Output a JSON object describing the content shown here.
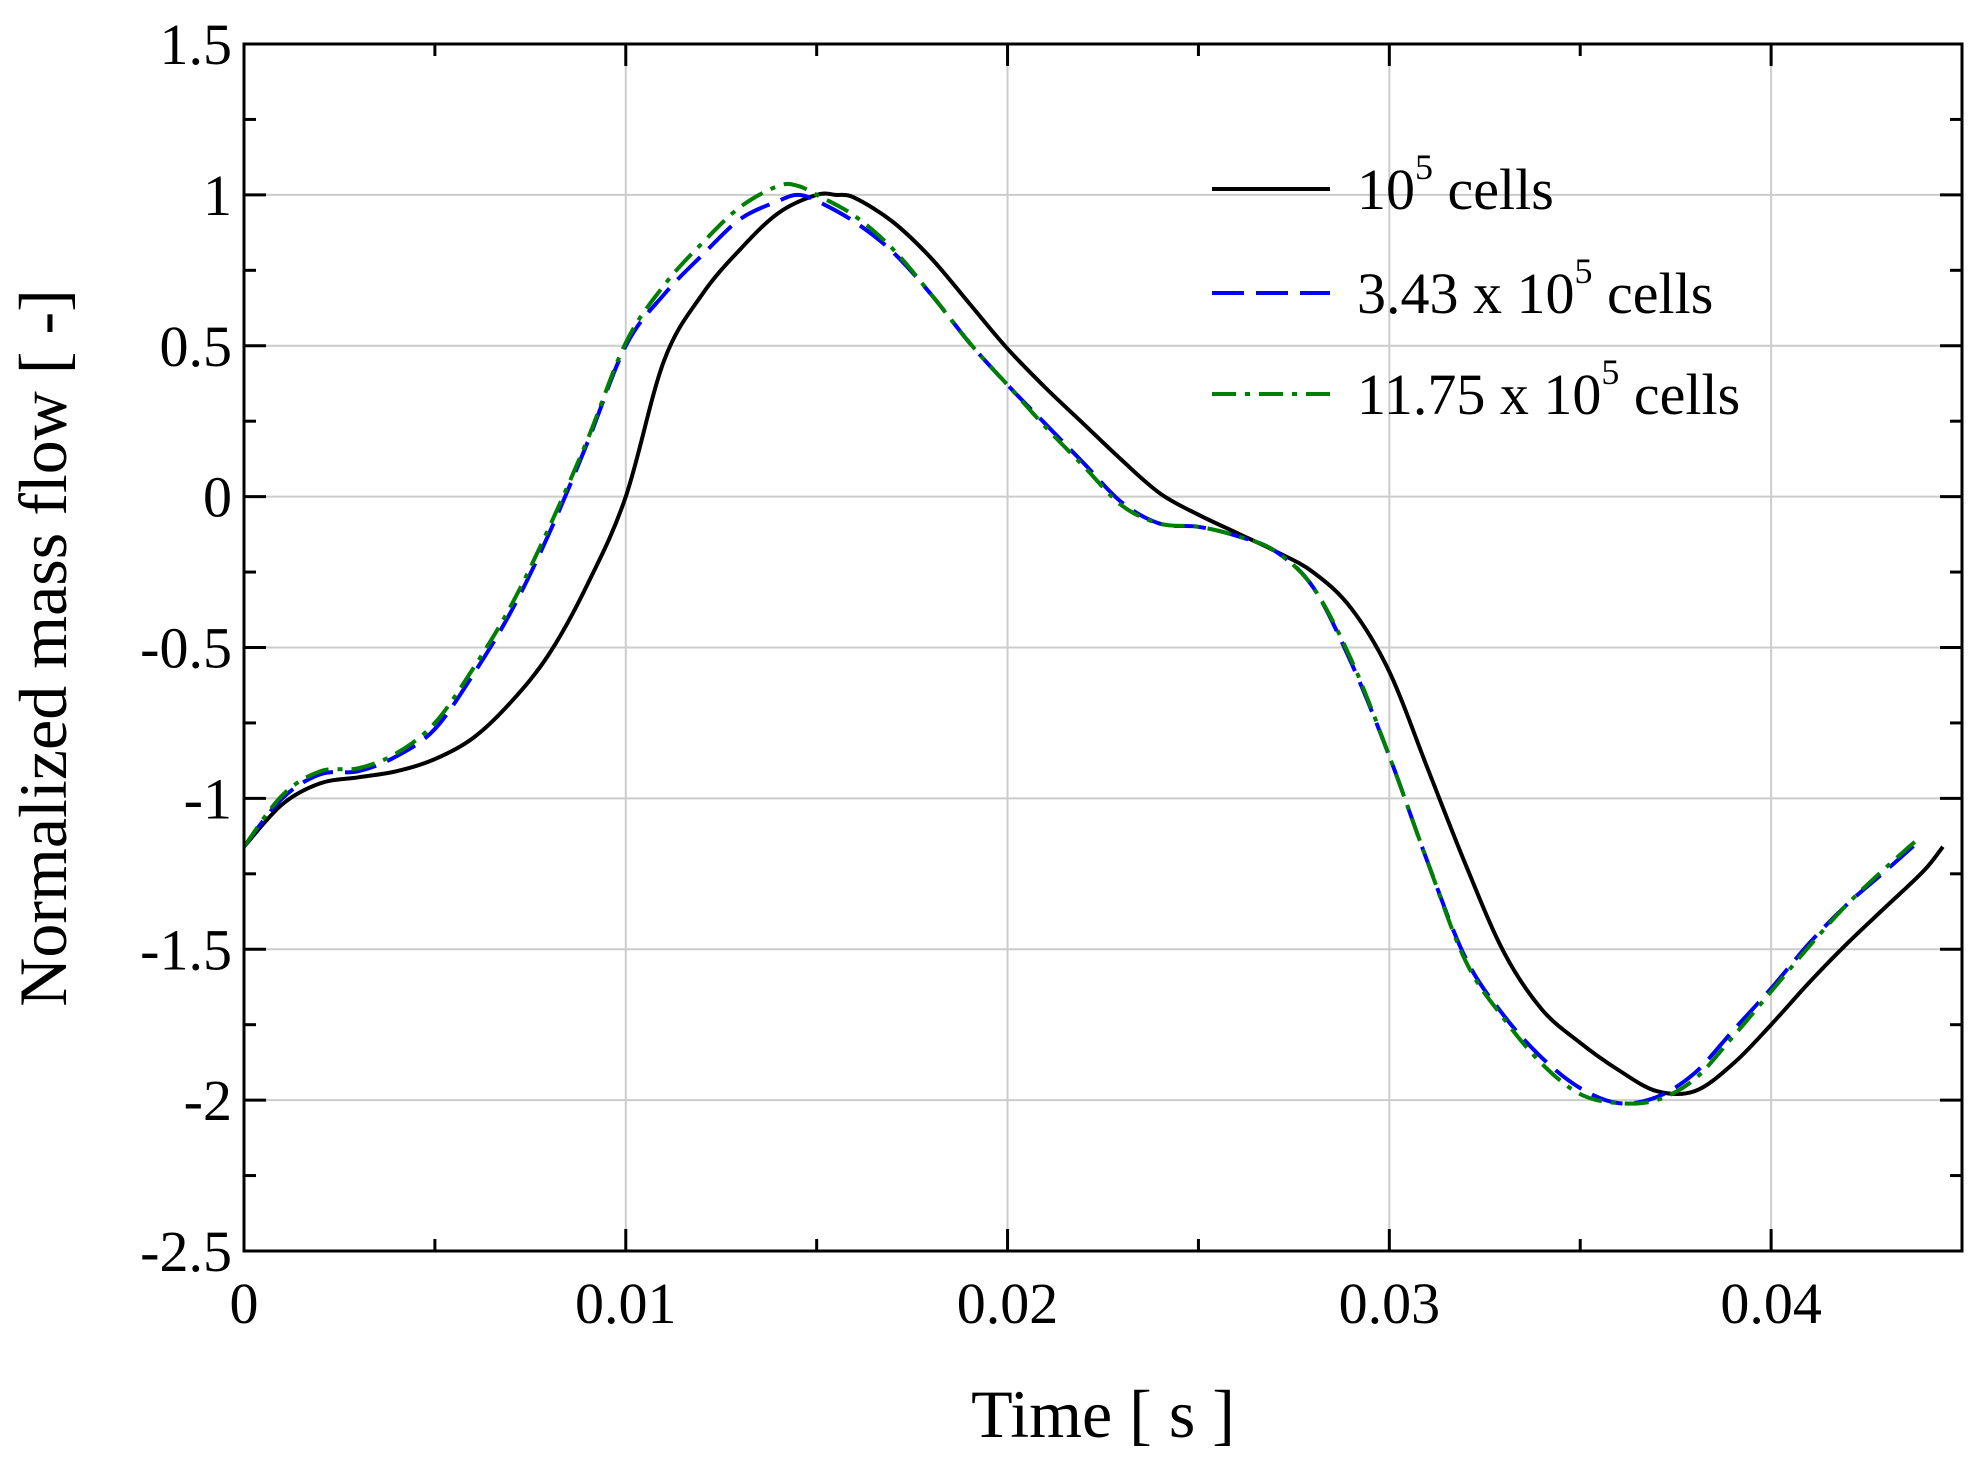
{
  "chart_data": {
    "type": "line",
    "title": "",
    "xlabel": "Time [ s ]",
    "ylabel": "Normalized mass flow [ -]",
    "xlim": [
      0,
      0.045
    ],
    "ylim": [
      -2.5,
      1.5
    ],
    "grid": true,
    "legend_position": "top-right",
    "xticks": [
      0,
      0.01,
      0.02,
      0.03,
      0.04
    ],
    "xtick_labels": [
      "0",
      "0.01",
      "0.02",
      "0.03",
      "0.04"
    ],
    "yticks": [
      1.5,
      1,
      0.5,
      0,
      -0.5,
      -1,
      -1.5,
      -2,
      -2.5
    ],
    "ytick_labels": [
      "1.5",
      "1",
      "0.5",
      "0",
      "-0.5",
      "-1",
      "-1.5",
      "-2",
      "-2.5"
    ],
    "series": [
      {
        "name": "10^5 cells",
        "legend_main": "10",
        "legend_sup": "5",
        "legend_tail": " cells",
        "color": "#000000",
        "style": "solid",
        "x": [
          0,
          0.001,
          0.002,
          0.003,
          0.004,
          0.005,
          0.006,
          0.007,
          0.008,
          0.009,
          0.01,
          0.011,
          0.012,
          0.013,
          0.014,
          0.015,
          0.0155,
          0.016,
          0.017,
          0.018,
          0.019,
          0.02,
          0.021,
          0.022,
          0.023,
          0.024,
          0.025,
          0.026,
          0.027,
          0.028,
          0.029,
          0.03,
          0.031,
          0.032,
          0.033,
          0.034,
          0.035,
          0.036,
          0.037,
          0.038,
          0.039,
          0.04,
          0.041,
          0.042,
          0.043,
          0.044,
          0.0445
        ],
        "y": [
          -1.16,
          -1.02,
          -0.95,
          -0.93,
          -0.91,
          -0.87,
          -0.8,
          -0.68,
          -0.52,
          -0.29,
          -0.0,
          0.45,
          0.67,
          0.82,
          0.94,
          1.0,
          1.0,
          0.99,
          0.91,
          0.79,
          0.64,
          0.49,
          0.36,
          0.24,
          0.12,
          0.01,
          -0.06,
          -0.12,
          -0.18,
          -0.25,
          -0.37,
          -0.58,
          -0.9,
          -1.22,
          -1.51,
          -1.7,
          -1.81,
          -1.9,
          -1.97,
          -1.97,
          -1.88,
          -1.75,
          -1.61,
          -1.48,
          -1.36,
          -1.24,
          -1.16
        ]
      },
      {
        "name": "3.43 x 10^5 cells",
        "legend_main": "3.43 x 10",
        "legend_sup": "5",
        "legend_tail": " cells",
        "color": "#0000ff",
        "style": "dashed",
        "x": [
          0,
          0.001,
          0.002,
          0.003,
          0.004,
          0.005,
          0.006,
          0.007,
          0.008,
          0.009,
          0.01,
          0.011,
          0.012,
          0.013,
          0.014,
          0.0145,
          0.015,
          0.016,
          0.017,
          0.018,
          0.019,
          0.02,
          0.021,
          0.022,
          0.023,
          0.024,
          0.025,
          0.026,
          0.027,
          0.028,
          0.029,
          0.03,
          0.031,
          0.032,
          0.033,
          0.034,
          0.035,
          0.036,
          0.037,
          0.038,
          0.039,
          0.04,
          0.041,
          0.042,
          0.043,
          0.0438
        ],
        "y": [
          -1.16,
          -1.0,
          -0.92,
          -0.91,
          -0.86,
          -0.77,
          -0.59,
          -0.38,
          -0.12,
          0.18,
          0.5,
          0.67,
          0.8,
          0.92,
          0.98,
          1.0,
          0.98,
          0.91,
          0.81,
          0.67,
          0.51,
          0.37,
          0.24,
          0.11,
          -0.02,
          -0.09,
          -0.1,
          -0.13,
          -0.18,
          -0.3,
          -0.55,
          -0.86,
          -1.21,
          -1.53,
          -1.72,
          -1.86,
          -1.96,
          -2.01,
          -1.99,
          -1.91,
          -1.77,
          -1.63,
          -1.48,
          -1.35,
          -1.24,
          -1.15
        ]
      },
      {
        "name": "11.75 x 10^5 cells",
        "legend_main": "11.75 x 10",
        "legend_sup": "5",
        "legend_tail": " cells",
        "color": "#008000",
        "style": "dashdot",
        "x": [
          0,
          0.001,
          0.002,
          0.003,
          0.004,
          0.005,
          0.006,
          0.007,
          0.008,
          0.009,
          0.01,
          0.011,
          0.012,
          0.013,
          0.014,
          0.0145,
          0.015,
          0.016,
          0.017,
          0.018,
          0.019,
          0.02,
          0.021,
          0.022,
          0.023,
          0.024,
          0.025,
          0.026,
          0.027,
          0.028,
          0.029,
          0.03,
          0.031,
          0.032,
          0.033,
          0.034,
          0.035,
          0.036,
          0.037,
          0.038,
          0.039,
          0.04,
          0.041,
          0.042,
          0.043,
          0.0438
        ],
        "y": [
          -1.16,
          -0.99,
          -0.91,
          -0.9,
          -0.85,
          -0.75,
          -0.57,
          -0.36,
          -0.1,
          0.19,
          0.51,
          0.7,
          0.84,
          0.96,
          1.03,
          1.03,
          1.0,
          0.93,
          0.82,
          0.67,
          0.51,
          0.37,
          0.23,
          0.1,
          -0.03,
          -0.09,
          -0.1,
          -0.13,
          -0.18,
          -0.3,
          -0.54,
          -0.86,
          -1.21,
          -1.54,
          -1.73,
          -1.88,
          -1.98,
          -2.01,
          -2.0,
          -1.93,
          -1.79,
          -1.64,
          -1.49,
          -1.35,
          -1.23,
          -1.14
        ]
      }
    ]
  }
}
